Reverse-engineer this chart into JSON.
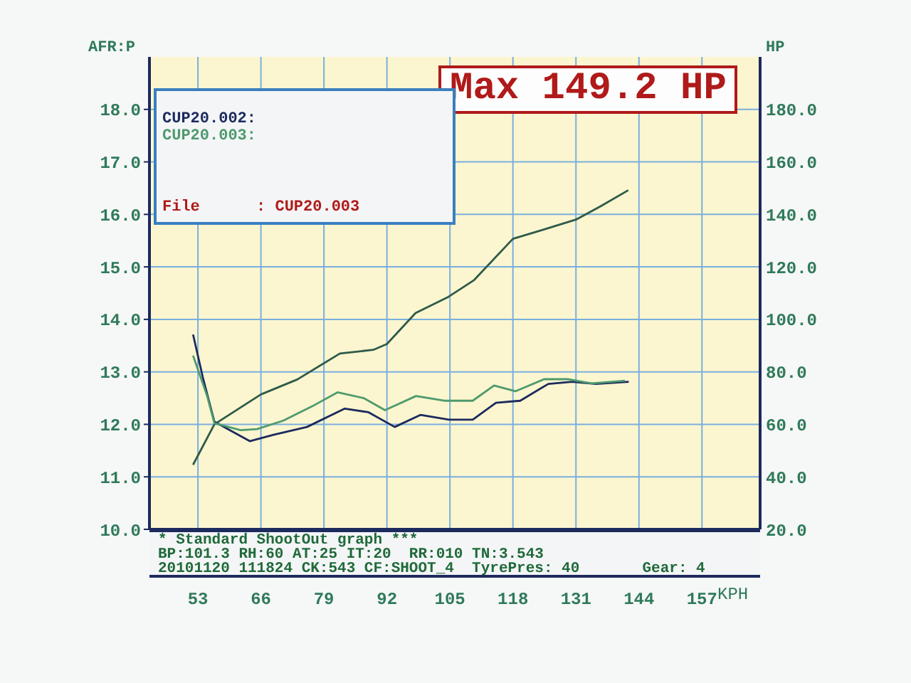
{
  "chart_data": {
    "type": "line",
    "title": "Max 149.2 HP",
    "ylabel": "AFR:P",
    "y2label": "HP",
    "xlabel": "KPH",
    "annotations": [
      "File      : CUP20.003",
      "* Standard ShootOut graph ***",
      "BP:101.3 RH:60 AT:25 IT:20  RR:010 TN:3.543",
      "20101120 111824 CK:543 CF:SHOOT_4  TyrePres: 40       Gear: 4"
    ],
    "series": [
      {
        "color": "#2f5a4a",
        "axis": "y2",
        "x": [
          52,
          56.4,
          66,
          73.5,
          82.3,
          89.2,
          92,
          97.9,
          104.7,
          110,
          118,
          124,
          131,
          136,
          141.8
        ],
        "values": [
          44.6,
          60,
          71.4,
          77.1,
          87,
          88.4,
          90.6,
          102.4,
          108.6,
          115,
          130.7,
          134,
          138,
          143,
          149.2
        ]
      },
      {
        "name": "CUP20.002:",
        "color": "#1c2a5e",
        "x": [
          52,
          54,
          56.4,
          63.7,
          68.6,
          75.5,
          83.3,
          88.2,
          93.6,
          98.9,
          104.8,
          109.7,
          114.5,
          119.5,
          125.3,
          130.2,
          135.1,
          141.9
        ],
        "values": [
          13.71,
          12.9,
          12.05,
          11.68,
          11.8,
          11.95,
          12.3,
          12.23,
          11.95,
          12.18,
          12.09,
          12.09,
          12.41,
          12.45,
          12.77,
          12.81,
          12.77,
          12.81
        ]
      },
      {
        "name": "CUP20.003:",
        "color": "#4e9a6e",
        "x": [
          52,
          54.9,
          56.4,
          61.8,
          65.2,
          70.6,
          76.5,
          81.8,
          87.2,
          91.6,
          98,
          103.8,
          109.7,
          114.1,
          118.5,
          124.4,
          129.3,
          134.2,
          141.1
        ],
        "values": [
          13.31,
          12.54,
          12.02,
          11.89,
          11.91,
          12.07,
          12.34,
          12.61,
          12.5,
          12.27,
          12.54,
          12.45,
          12.45,
          12.74,
          12.63,
          12.86,
          12.86,
          12.78,
          12.83
        ]
      }
    ],
    "xlim": [
      43,
      169
    ],
    "xticks": [
      53,
      66,
      79,
      92,
      105,
      118,
      131,
      144,
      157
    ],
    "ylim": [
      10,
      19
    ],
    "yticks": [
      {
        "value": 10,
        "label": "10.0"
      },
      {
        "value": 11,
        "label": "11.0"
      },
      {
        "value": 12,
        "label": "12.0"
      },
      {
        "value": 13,
        "label": "13.0"
      },
      {
        "value": 14,
        "label": "14.0"
      },
      {
        "value": 15,
        "label": "15.0"
      },
      {
        "value": 16,
        "label": "16.0"
      },
      {
        "value": 17,
        "label": "17.0"
      },
      {
        "value": 18,
        "label": "18.0"
      }
    ],
    "y2lim": [
      20,
      200
    ],
    "y2ticks": [
      {
        "value": 20,
        "label": "20.0"
      },
      {
        "value": 40,
        "label": "40.0"
      },
      {
        "value": 60,
        "label": "60.0"
      },
      {
        "value": 80,
        "label": "80.0"
      },
      {
        "value": 100,
        "label": "100.0"
      },
      {
        "value": 120,
        "label": "120.0"
      },
      {
        "value": 140,
        "label": "140.0"
      },
      {
        "value": 160,
        "label": "160.0"
      },
      {
        "value": 180,
        "label": "180.0"
      }
    ],
    "grid": true,
    "legend": "top left",
    "marker": "none",
    "line_style": "solid"
  }
}
